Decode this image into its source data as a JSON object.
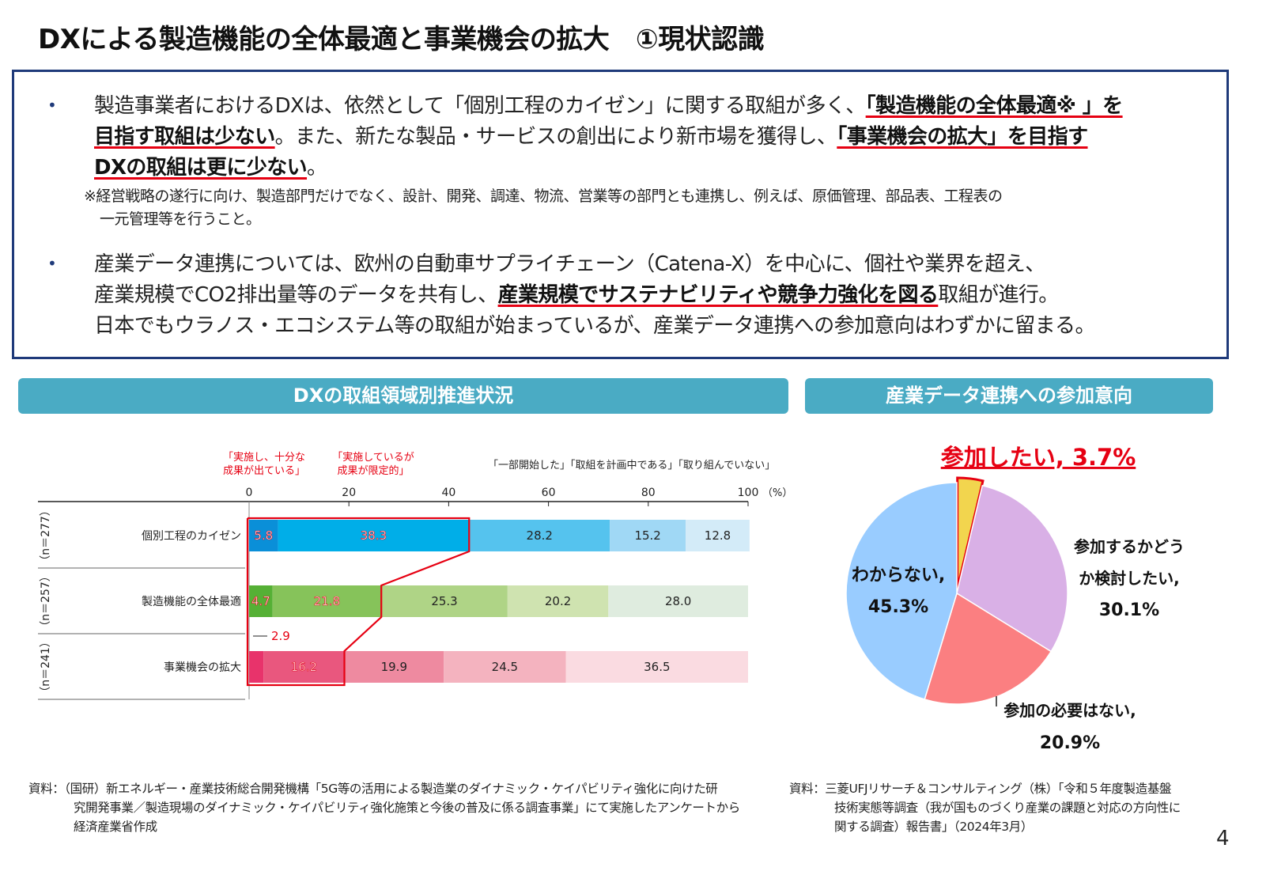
{
  "title": "DXによる製造機能の全体最適と事業機会の拡大　①現状認識",
  "bullet": "•",
  "summary": {
    "b1_l1_a": "製造事業者におけるDXは、依然として「個別工程のカイゼン」に関する取組が多く、",
    "b1_l1_em": "「製造機能の全体最適※ 」を",
    "b1_l2_em": "目指す取組は少ない",
    "b1_l2_a": "。また、新たな製品・サービスの創出により新市場を獲得し、",
    "b1_l2_em2": "「事業機会の拡大」を目指す",
    "b1_l3_em": "DXの取組は更に少ない",
    "b1_l3_a": "。",
    "note_l1": "※経営戦略の遂行に向け、製造部門だけでなく、設計、開発、調達、物流、営業等の部門とも連携し、例えば、原価管理、部品表、工程表の",
    "note_l2": "一元管理等を行うこと。",
    "b2_l1": "産業データ連携については、欧州の自動車サプライチェーン（Catena-X）を中心に、個社や業界を超え、",
    "b2_l2_a": "産業規模でCO2排出量等のデータを共有し、",
    "b2_l2_em": "産業規模でサステナビリティや競争力強化を図る",
    "b2_l2_b": "取組が進行。",
    "b2_l3": "日本でもウラノス・エコシステム等の取組が始まっているが、産業データ連携への参加意向はわずかに留まる。"
  },
  "left_header": "DXの取組領域別推進状況",
  "right_header": "産業データ連携への参加意向",
  "chart_data": [
    {
      "type": "bar",
      "orientation": "horizontal",
      "stacked": true,
      "xlim": [
        0,
        100
      ],
      "xticks": [
        "0",
        "20",
        "40",
        "60",
        "80",
        "100"
      ],
      "unit": "（%）",
      "legend": [
        "「実施し、十分な成果が出ている」",
        "「実施しているが成果が限定的」",
        "「一部開始した」",
        "「取組を計画中である」",
        "「取り組んでいない」"
      ],
      "legend_lines": {
        "l1a": "「実施し、十分な",
        "l1b": "成果が出ている」",
        "l2a": "「実施しているが",
        "l2b": "成果が限定的」",
        "rest": "「一部開始した」「取組を計画中である」「取り組んでいない」"
      },
      "categories": [
        "個別工程のカイゼン",
        "製造機能の全体最適",
        "事業機会の拡大"
      ],
      "n_labels": [
        "（n＝277）",
        "（n＝257）",
        "（n＝241）"
      ],
      "series_values": [
        [
          5.8,
          38.3,
          28.2,
          15.2,
          12.8
        ],
        [
          4.7,
          21.8,
          25.3,
          20.2,
          28.0
        ],
        [
          2.9,
          16.2,
          19.9,
          24.5,
          36.5
        ]
      ],
      "value_labels": [
        [
          "5.8",
          "38.3",
          "28.2",
          "15.2",
          "12.8"
        ],
        [
          "4.7",
          "21.8",
          "25.3",
          "20.2",
          "28.0"
        ],
        [
          "2.9",
          "16.2",
          "19.9",
          "24.5",
          "36.5"
        ]
      ],
      "colors": [
        [
          "#0a8fd8",
          "#00aee8",
          "#55c3ee",
          "#a0d8f5",
          "#d3ebf8"
        ],
        [
          "#55b035",
          "#86c35a",
          "#afd486",
          "#cfe3b0",
          "#dfecdf"
        ],
        [
          "#e8336b",
          "#e9577e",
          "#ee8aa0",
          "#f4b3bf",
          "#fadbe1"
        ]
      ],
      "highlight_color": "#e60012"
    },
    {
      "type": "pie",
      "slices": [
        {
          "label_lines": [
            "参加したい, 3.7%"
          ],
          "value": 3.7,
          "color": "#f2d54e"
        },
        {
          "label_lines": [
            "参加するかどう",
            "か検討したい,",
            "30.1%"
          ],
          "value": 30.1,
          "color": "#d9b0e6"
        },
        {
          "label_lines": [
            "参加の必要はない,",
            "20.9%"
          ],
          "value": 20.9,
          "color": "#fb7f81"
        },
        {
          "label_lines": [
            "わからない,",
            "45.3%"
          ],
          "value": 45.3,
          "color": "#99ccff"
        }
      ]
    }
  ],
  "sources": {
    "left_l1": "資料：（国研）新エネルギー・産業技術総合開発機構「5G等の活用による製造業のダイナミック・ケイパビリティ強化に向けた研",
    "left_l2": "究開発事業／製造現場のダイナミック・ケイパビリティ強化施策と今後の普及に係る調査事業」にて実施したアンケートから",
    "left_l3": "経済産業省作成",
    "right_l1": "資料：三菱UFJリサーチ＆コンサルティング（株）「令和５年度製造基盤",
    "right_l2": "技術実態等調査（我が国ものづくり産業の課題と対応の方向性に",
    "right_l3": "関する調査）報告書」（2024年3月）"
  },
  "page_number": "4"
}
